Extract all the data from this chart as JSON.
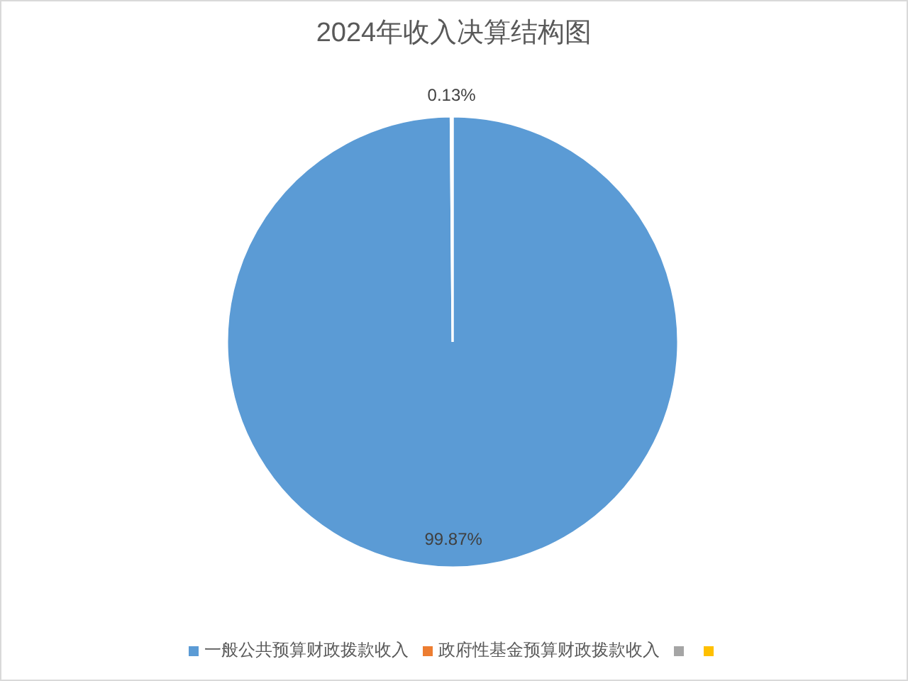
{
  "chart_data": {
    "type": "pie",
    "title": "2024年收入决算结构图",
    "categories": [
      "一般公共预算财政拨款收入",
      "政府性基金预算财政拨款收入",
      null,
      null
    ],
    "values": [
      99.87,
      0.13,
      0,
      0
    ],
    "colors": [
      "#5b9bd5",
      "#ed7d31",
      "#a5a5a5",
      "#ffc000"
    ],
    "value_labels": [
      "99.87%",
      "0.13%",
      null,
      null
    ],
    "legend": "bottom"
  }
}
